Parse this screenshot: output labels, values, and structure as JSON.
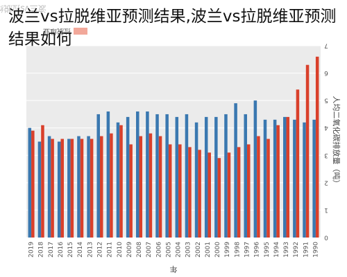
{
  "overlay_title": "波兰vs拉脱维亚预测结果,波兰vs拉脱维亚预测结果如何",
  "chart_data": {
    "type": "bar",
    "title": "波兰vs拉脱维亚预测结果",
    "xlabel": "年",
    "ylabel": "人均二氧化碳排放量（吨）",
    "ylim": [
      0,
      7
    ],
    "yticks": [
      0,
      1,
      2,
      3,
      4,
      5,
      6,
      7
    ],
    "grid": true,
    "legend_position": "top-left",
    "legend_label": "拉脱维亚",
    "categories": [
      "2019",
      "2018",
      "2017",
      "2016",
      "2015",
      "2014",
      "2013",
      "2012",
      "2011",
      "2010",
      "2009",
      "2008",
      "2007",
      "2006",
      "2005",
      "2004",
      "2003",
      "2002",
      "2001",
      "2000",
      "1999",
      "1998",
      "1997",
      "1996",
      "1995",
      "1994",
      "1993",
      "1992",
      "1991",
      "1990"
    ],
    "series": [
      {
        "name": "",
        "color": "#3a78b0",
        "values": [
          4.0,
          3.5,
          3.7,
          3.5,
          3.6,
          3.7,
          3.7,
          4.5,
          4.6,
          4.2,
          4.4,
          4.6,
          4.6,
          4.5,
          4.5,
          4.4,
          4.5,
          4.2,
          4.4,
          4.4,
          4.5,
          4.9,
          4.5,
          5.0,
          4.3,
          4.3,
          4.4,
          4.3,
          4.2,
          4.3
        ]
      },
      {
        "name": "拉脱维亚",
        "color": "#d9402b",
        "values": [
          3.9,
          4.1,
          3.6,
          3.6,
          3.6,
          3.6,
          3.6,
          3.7,
          3.8,
          4.1,
          3.4,
          3.7,
          3.8,
          3.7,
          3.4,
          3.4,
          3.3,
          3.2,
          3.1,
          2.9,
          3.1,
          3.3,
          3.4,
          3.7,
          3.6,
          4.1,
          4.4,
          5.4,
          6.3,
          6.6
        ]
      }
    ]
  }
}
